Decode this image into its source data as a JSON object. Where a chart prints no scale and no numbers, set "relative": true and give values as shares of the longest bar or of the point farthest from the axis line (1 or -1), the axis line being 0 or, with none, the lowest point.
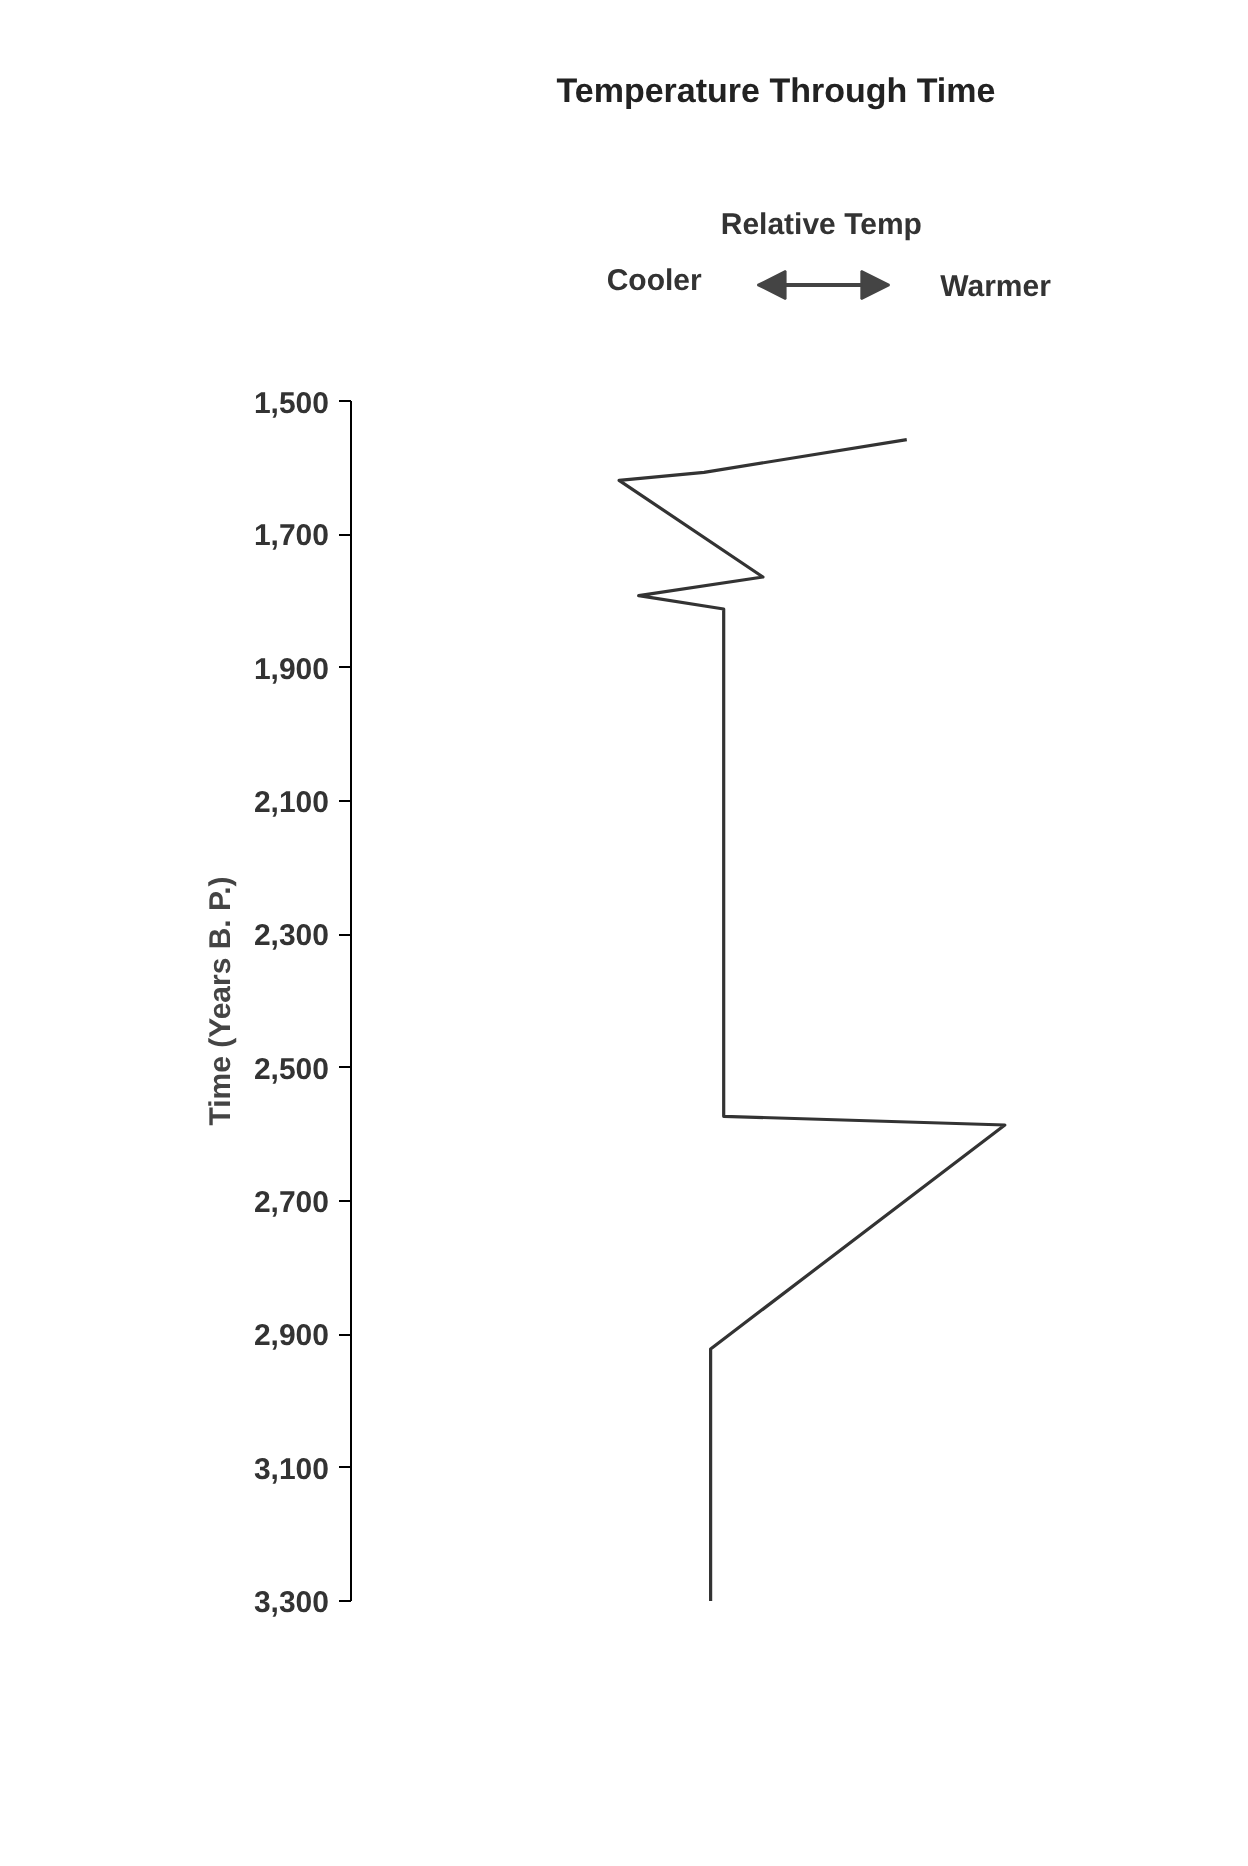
{
  "chart_data": {
    "type": "line",
    "orientation": "horizontal",
    "relative": true,
    "title": "Temperature Through Time",
    "xlabel": "Relative Temp",
    "ylabel": "Time (Years B. P.)",
    "annotations": [
      "Cooler",
      "Warmer"
    ],
    "x": [
      1558,
      1607,
      1619,
      1764,
      1792,
      1812,
      2573,
      2586,
      2922,
      3300
    ],
    "values": [
      0.85,
      0.54,
      0.41,
      0.63,
      0.44,
      0.57,
      0.57,
      1,
      0.55,
      0.55
    ],
    "color": "#333333",
    "line_style": "solid",
    "grid": false,
    "ylim": [
      3300,
      1500
    ],
    "yticks": [
      {
        "value": 1500,
        "label": "1,500"
      },
      {
        "value": 1700,
        "label": "1,700"
      },
      {
        "value": 1900,
        "label": "1,900"
      },
      {
        "value": 2100,
        "label": "2,100"
      },
      {
        "value": 2300,
        "label": "2,300"
      },
      {
        "value": 2500,
        "label": "2,500"
      },
      {
        "value": 2700,
        "label": "2,700"
      },
      {
        "value": 2900,
        "label": "2,900"
      },
      {
        "value": 3100,
        "label": "3,100"
      },
      {
        "value": 3300,
        "label": "3,300"
      }
    ]
  }
}
